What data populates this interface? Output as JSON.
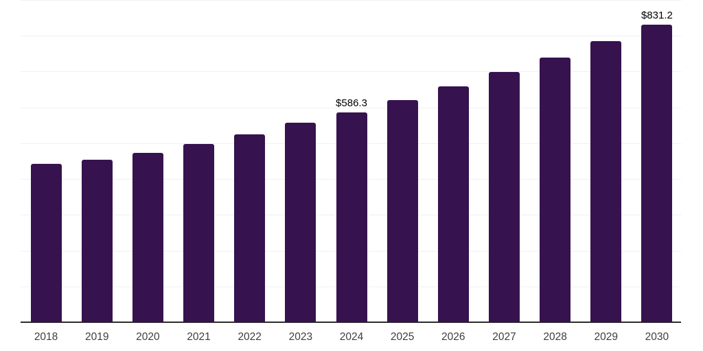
{
  "chart_data": {
    "type": "bar",
    "title": "",
    "xlabel": "",
    "ylabel": "",
    "categories": [
      "2018",
      "2019",
      "2020",
      "2021",
      "2022",
      "2023",
      "2024",
      "2025",
      "2026",
      "2027",
      "2028",
      "2029",
      "2030"
    ],
    "values": [
      441.6,
      453.9,
      473.1,
      498.7,
      525.2,
      556.5,
      586.3,
      621.4,
      658.6,
      698.1,
      739.9,
      784.2,
      831.2
    ],
    "data_labels": [
      {
        "category": "2024",
        "text": "$586.3"
      },
      {
        "category": "2030",
        "text": "$831.2"
      }
    ],
    "ylim": [
      0,
      900
    ],
    "grid_step": 100,
    "grid_on": true,
    "legend_position": "none",
    "y_axis_labels_visible": false,
    "colors": {
      "bar": "#36124e",
      "gridline": "#f0f0f0",
      "axis_line": "#2b2b2b",
      "data_label": "#000000",
      "tick_label": "#3d3d3d",
      "background": "#ffffff"
    }
  }
}
